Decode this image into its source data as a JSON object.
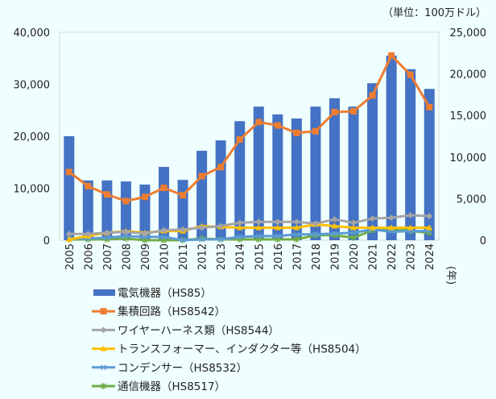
{
  "chart_data": {
    "type": "bar+line",
    "unit_label": "（単位：100万ドル）",
    "x_suffix": "(年)",
    "categories": [
      "2005",
      "2006",
      "2007",
      "2008",
      "2009",
      "2010",
      "2011",
      "2012",
      "2013",
      "2014",
      "2015",
      "2016",
      "2017",
      "2018",
      "2019",
      "2020",
      "2021",
      "2022",
      "2023",
      "2024"
    ],
    "left_axis": {
      "range": [
        0,
        40000
      ],
      "ticks": [
        "0",
        "10,000",
        "20,000",
        "30,000",
        "40,000"
      ]
    },
    "right_axis": {
      "range": [
        0,
        25000
      ],
      "ticks": [
        "0",
        "5,000",
        "10,000",
        "15,000",
        "20,000",
        "25,000"
      ]
    },
    "grid": false,
    "legend_position": "bottom",
    "series": [
      {
        "name": "電気機器（HS85）",
        "type": "bar",
        "axis": "left",
        "color": "#4472c4",
        "values": [
          20000,
          11500,
          11500,
          11300,
          10700,
          14100,
          11600,
          17200,
          19200,
          22900,
          25700,
          24200,
          23400,
          25700,
          27300,
          25700,
          30200,
          35500,
          32900,
          29100
        ]
      },
      {
        "name": "集積回路（HS8542）",
        "type": "line",
        "axis": "right",
        "color": "#ed7d31",
        "marker": "square",
        "values": [
          8200,
          6500,
          5500,
          4700,
          5200,
          6300,
          5400,
          7700,
          8800,
          12100,
          14200,
          13800,
          12900,
          13100,
          15400,
          15500,
          17400,
          22200,
          19900,
          16000
        ]
      },
      {
        "name": "ワイヤーハーネス類（HS8544）",
        "type": "line",
        "axis": "right",
        "color": "#a5a5a5",
        "marker": "diamond",
        "values": [
          750,
          750,
          900,
          1000,
          800,
          1200,
          1300,
          1500,
          1700,
          2100,
          2200,
          2200,
          2200,
          2000,
          2500,
          2100,
          2600,
          2700,
          3000,
          2900
        ]
      },
      {
        "name": "トランスフォーマー、インダクター等（HS8504）",
        "type": "line",
        "axis": "right",
        "color": "#ffc000",
        "marker": "triangle",
        "values": [
          100,
          500,
          900,
          1100,
          900,
          1100,
          1100,
          1700,
          1600,
          1500,
          1500,
          1500,
          1500,
          1900,
          1700,
          1500,
          1500,
          1500,
          1500,
          1500
        ]
      },
      {
        "name": "コンデンサー（HS8532）",
        "type": "line",
        "axis": "right",
        "color": "#5b9bd5",
        "marker": "x",
        "values": [
          200,
          200,
          300,
          500,
          400,
          400,
          0,
          100,
          100,
          400,
          500,
          500,
          700,
          700,
          800,
          900,
          1300,
          1000,
          1100,
          1100
        ]
      },
      {
        "name": "通信機器（HS8517）",
        "type": "line",
        "axis": "right",
        "color": "#70ad47",
        "marker": "star",
        "values": [
          100,
          100,
          100,
          200,
          0,
          0,
          0,
          200,
          100,
          100,
          100,
          100,
          100,
          600,
          600,
          300,
          1200,
          1400,
          1100,
          900
        ]
      }
    ]
  }
}
